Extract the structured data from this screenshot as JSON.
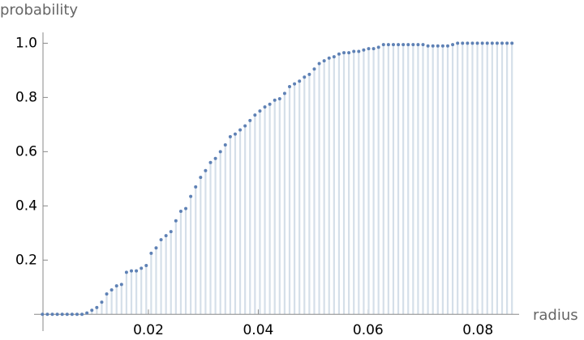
{
  "chart_data": {
    "type": "discrete",
    "y_label": "probability",
    "x_label": "radius",
    "color": "#5e81b5",
    "fill_color": "#d5dfe9",
    "xlim": [
      0.0008,
      0.0875
    ],
    "ylim": [
      -0.05,
      1.04
    ],
    "xticks": [
      0.02,
      0.04,
      0.06,
      0.08
    ],
    "yticks": [
      0.2,
      0.4,
      0.6,
      0.8,
      {
        "value": 1,
        "label": "1.0"
      }
    ],
    "x": [
      0.0007,
      0.0016,
      0.0025,
      0.0034,
      0.0043,
      0.0052,
      0.0061,
      0.007,
      0.0079,
      0.0088,
      0.0097,
      0.0106,
      0.0115,
      0.0124,
      0.0133,
      0.0142,
      0.0151,
      0.016,
      0.0169,
      0.0178,
      0.0187,
      0.0196,
      0.0205,
      0.0214,
      0.0223,
      0.0232,
      0.0241,
      0.025,
      0.0259,
      0.0268,
      0.0277,
      0.0286,
      0.0295,
      0.0304,
      0.0313,
      0.0322,
      0.0331,
      0.034,
      0.0349,
      0.0358,
      0.0367,
      0.0376,
      0.0385,
      0.0394,
      0.0403,
      0.0412,
      0.0421,
      0.043,
      0.0439,
      0.0448,
      0.0457,
      0.0466,
      0.0475,
      0.0484,
      0.0493,
      0.0502,
      0.0511,
      0.052,
      0.0529,
      0.0538,
      0.0547,
      0.0556,
      0.0565,
      0.0574,
      0.0583,
      0.0592,
      0.0601,
      0.061,
      0.0619,
      0.0628,
      0.0637,
      0.0646,
      0.0655,
      0.0664,
      0.0673,
      0.0682,
      0.0691,
      0.07,
      0.0709,
      0.0718,
      0.0727,
      0.0736,
      0.0745,
      0.0754,
      0.0763,
      0.0772,
      0.0781,
      0.079,
      0.0799,
      0.0808,
      0.0817,
      0.0826,
      0.0835,
      0.0844,
      0.0853,
      0.0862
    ],
    "values": [
      0,
      0,
      0,
      0,
      0,
      0,
      0,
      0,
      0,
      0.005,
      0.015,
      0.025,
      0.045,
      0.075,
      0.09,
      0.105,
      0.11,
      0.155,
      0.16,
      0.16,
      0.17,
      0.18,
      0.225,
      0.245,
      0.275,
      0.29,
      0.305,
      0.345,
      0.38,
      0.39,
      0.435,
      0.47,
      0.505,
      0.53,
      0.56,
      0.575,
      0.6,
      0.625,
      0.655,
      0.665,
      0.68,
      0.695,
      0.715,
      0.735,
      0.75,
      0.765,
      0.775,
      0.79,
      0.795,
      0.815,
      0.84,
      0.85,
      0.86,
      0.875,
      0.885,
      0.905,
      0.925,
      0.935,
      0.945,
      0.95,
      0.96,
      0.965,
      0.965,
      0.97,
      0.97,
      0.975,
      0.98,
      0.98,
      0.985,
      0.995,
      0.995,
      0.995,
      0.995,
      0.995,
      0.995,
      0.995,
      0.995,
      0.995,
      0.99,
      0.99,
      0.99,
      0.99,
      0.99,
      0.995,
      1,
      1,
      1,
      1,
      1,
      1,
      1,
      1,
      1,
      1,
      1,
      1
    ]
  }
}
